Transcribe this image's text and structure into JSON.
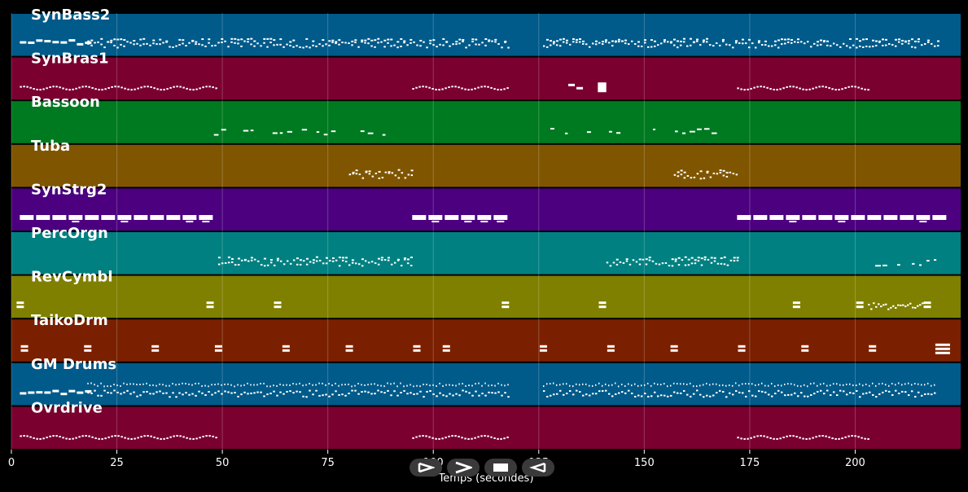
{
  "chart_data": {
    "type": "piano-roll",
    "xlabel": "Temps (secondes)",
    "xlim": [
      0,
      225
    ],
    "xticks": [
      0,
      25,
      50,
      75,
      100,
      125,
      150,
      175,
      200
    ],
    "grid": true,
    "tracks": [
      {
        "name": "SynBass2",
        "color": "#005a8a",
        "segments": [
          [
            2,
            18,
            "blocks"
          ],
          [
            18,
            118,
            "dense"
          ],
          [
            126,
            220,
            "dense"
          ]
        ]
      },
      {
        "name": "SynBras1",
        "color": "#7a0030",
        "segments": [
          [
            2,
            49,
            "wave"
          ],
          [
            95,
            118,
            "wave"
          ],
          [
            132,
            134,
            "blocks"
          ],
          [
            139,
            141,
            "big"
          ],
          [
            172,
            203,
            "wave"
          ]
        ]
      },
      {
        "name": "Bassoon",
        "color": "#007a20",
        "segments": [
          [
            48,
            88,
            "sparse"
          ],
          [
            118,
            119,
            "sparse"
          ],
          [
            126,
            166,
            "sparse"
          ]
        ]
      },
      {
        "name": "Tuba",
        "color": "#7f5500",
        "segments": [
          [
            80,
            95,
            "dense"
          ],
          [
            157,
            172,
            "dense"
          ]
        ]
      },
      {
        "name": "SynStrg2",
        "color": "#4c0080",
        "segments": [
          [
            2,
            48,
            "thick"
          ],
          [
            95,
            118,
            "thick"
          ],
          [
            172,
            219,
            "thick"
          ]
        ]
      },
      {
        "name": "PercOrgn",
        "color": "#008080",
        "segments": [
          [
            49,
            95,
            "dense"
          ],
          [
            141,
            172,
            "dense"
          ],
          [
            203,
            219,
            "sparse"
          ]
        ]
      },
      {
        "name": "RevCymbl",
        "color": "#7f7f00",
        "pulses": [
          2,
          47,
          63,
          117,
          140,
          186,
          201,
          217
        ],
        "segments": [
          [
            203,
            216,
            "zigzag"
          ]
        ]
      },
      {
        "name": "TaikoDrm",
        "color": "#7a2000",
        "pulses": [
          3,
          18,
          34,
          49,
          65,
          80,
          96,
          103,
          126,
          142,
          157,
          173,
          188,
          204
        ],
        "segments": [
          [
            219,
            222,
            "big3"
          ]
        ]
      },
      {
        "name": "GM Drums",
        "color": "#005a8a",
        "segments": [
          [
            2,
            18,
            "blocks"
          ],
          [
            18,
            118,
            "drums"
          ],
          [
            126,
            219,
            "drums"
          ]
        ]
      },
      {
        "name": "Ovrdrive",
        "color": "#7a0030",
        "segments": [
          [
            2,
            49,
            "wave"
          ],
          [
            95,
            118,
            "wave"
          ],
          [
            172,
            203,
            "wave"
          ]
        ]
      }
    ]
  },
  "transport": {
    "play_icon": "play-icon",
    "forward_icon": "forward-icon",
    "stop_icon": "stop-icon",
    "rewind_icon": "rewind-icon"
  }
}
